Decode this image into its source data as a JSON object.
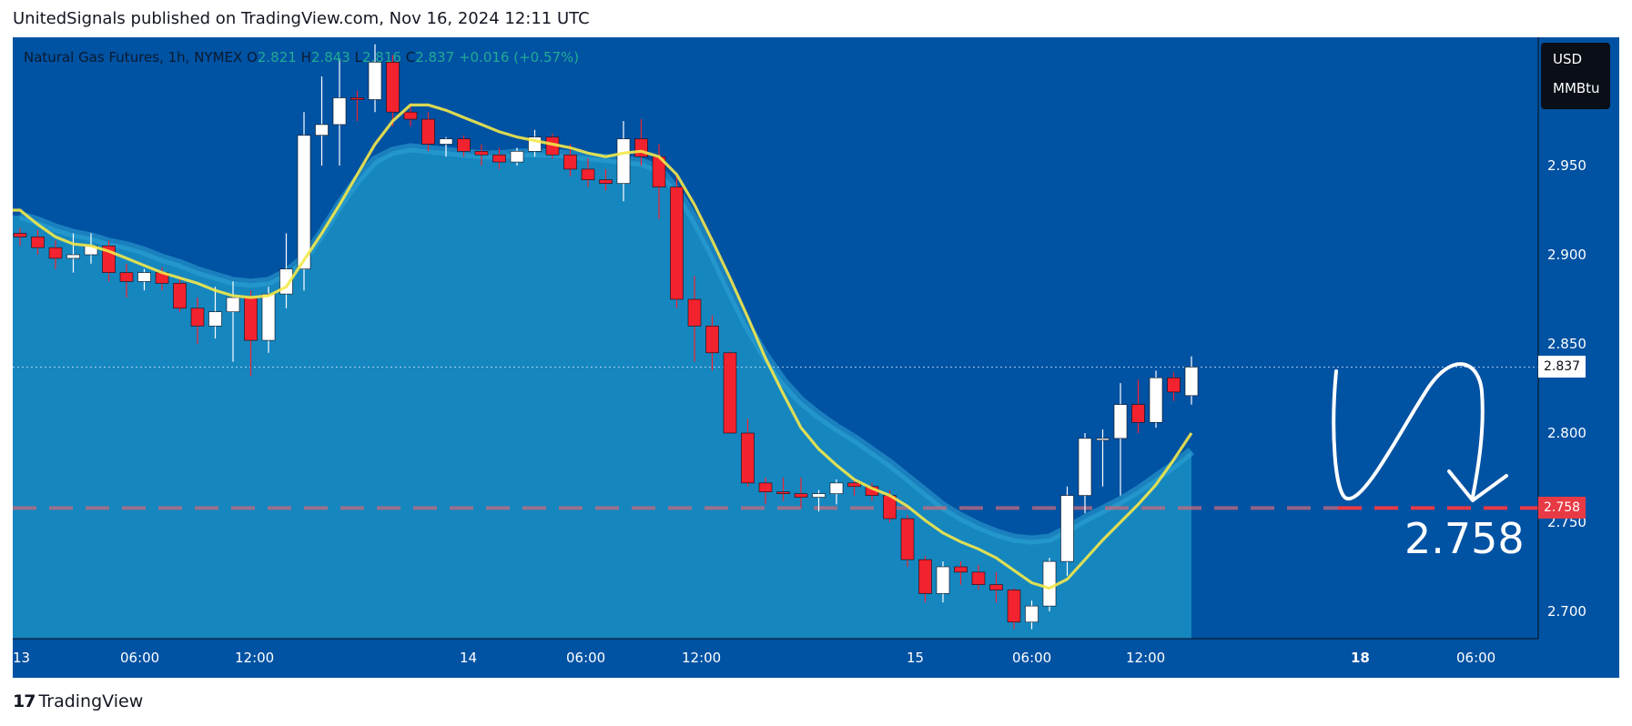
{
  "header": {
    "published": "UnitedSignals published on TradingView.com, Nov 16, 2024 12:11 UTC"
  },
  "symbol": {
    "name": "Natural Gas Futures, 1h, NYMEX",
    "o_label": "O",
    "o": "2.821",
    "h_label": "H",
    "h": "2.843",
    "l_label": "L",
    "l": "2.816",
    "c_label": "C",
    "c": "2.837",
    "change": "+0.016 (+0.57%)"
  },
  "units": {
    "currency": "USD",
    "unit": "MMBtu"
  },
  "price_tags": {
    "last": "2.837",
    "target": "2.758"
  },
  "annotation": {
    "target_text": "2.758"
  },
  "footer": {
    "brand": "TradingView"
  },
  "colors": {
    "up": "#ffffff",
    "down": "#f2222e",
    "ema": "#f3e84a",
    "band": "#1a8fc4",
    "background": "#0052a3",
    "target_line": "#e83a45"
  },
  "chart_data": {
    "type": "candlestick",
    "x_ticks": [
      "13",
      "06:00",
      "12:00",
      "14",
      "06:00",
      "12:00",
      "15",
      "06:00",
      "12:00",
      "18",
      "06:00"
    ],
    "y_ticks": [
      "2.950",
      "2.900",
      "2.850",
      "2.800",
      "2.750",
      "2.700"
    ],
    "ylim": [
      2.688,
      3.02
    ],
    "candles": [
      [
        2.912,
        2.915,
        2.905,
        2.91
      ],
      [
        2.91,
        2.914,
        2.9,
        2.904
      ],
      [
        2.904,
        2.908,
        2.892,
        2.898
      ],
      [
        2.898,
        2.912,
        2.89,
        2.9
      ],
      [
        2.9,
        2.912,
        2.895,
        2.905
      ],
      [
        2.905,
        2.908,
        2.885,
        2.89
      ],
      [
        2.89,
        2.895,
        2.876,
        2.885
      ],
      [
        2.885,
        2.892,
        2.88,
        2.89
      ],
      [
        2.89,
        2.893,
        2.88,
        2.884
      ],
      [
        2.884,
        2.888,
        2.868,
        2.87
      ],
      [
        2.87,
        2.876,
        2.85,
        2.86
      ],
      [
        2.86,
        2.882,
        2.853,
        2.868
      ],
      [
        2.868,
        2.885,
        2.84,
        2.876
      ],
      [
        2.876,
        2.88,
        2.832,
        2.852
      ],
      [
        2.852,
        2.882,
        2.845,
        2.878
      ],
      [
        2.878,
        2.912,
        2.87,
        2.892
      ],
      [
        2.892,
        2.98,
        2.88,
        2.967
      ],
      [
        2.967,
        3.0,
        2.95,
        2.973
      ],
      [
        2.973,
        3.01,
        2.95,
        2.988
      ],
      [
        2.988,
        2.992,
        2.975,
        2.987
      ],
      [
        2.987,
        3.018,
        2.98,
        3.008
      ],
      [
        3.008,
        3.012,
        2.972,
        2.98
      ],
      [
        2.98,
        2.985,
        2.972,
        2.976
      ],
      [
        2.976,
        2.98,
        2.958,
        2.962
      ],
      [
        2.962,
        2.966,
        2.955,
        2.965
      ],
      [
        2.965,
        2.967,
        2.955,
        2.958
      ],
      [
        2.958,
        2.962,
        2.95,
        2.956
      ],
      [
        2.956,
        2.96,
        2.948,
        2.952
      ],
      [
        2.952,
        2.96,
        2.95,
        2.958
      ],
      [
        2.958,
        2.97,
        2.955,
        2.966
      ],
      [
        2.966,
        2.968,
        2.954,
        2.956
      ],
      [
        2.956,
        2.962,
        2.944,
        2.948
      ],
      [
        2.948,
        2.954,
        2.938,
        2.942
      ],
      [
        2.942,
        2.948,
        2.936,
        2.94
      ],
      [
        2.94,
        2.975,
        2.93,
        2.965
      ],
      [
        2.965,
        2.976,
        2.95,
        2.955
      ],
      [
        2.955,
        2.962,
        2.92,
        2.938
      ],
      [
        2.938,
        2.945,
        2.87,
        2.875
      ],
      [
        2.875,
        2.888,
        2.84,
        2.86
      ],
      [
        2.86,
        2.866,
        2.835,
        2.845
      ],
      [
        2.845,
        2.846,
        2.8,
        2.8
      ],
      [
        2.8,
        2.808,
        2.77,
        2.772
      ],
      [
        2.772,
        2.775,
        2.76,
        2.767
      ],
      [
        2.767,
        2.775,
        2.762,
        2.766
      ],
      [
        2.766,
        2.775,
        2.758,
        2.764
      ],
      [
        2.764,
        2.768,
        2.756,
        2.766
      ],
      [
        2.766,
        2.774,
        2.76,
        2.772
      ],
      [
        2.772,
        2.774,
        2.765,
        2.77
      ],
      [
        2.77,
        2.772,
        2.762,
        2.765
      ],
      [
        2.765,
        2.768,
        2.75,
        2.752
      ],
      [
        2.752,
        2.754,
        2.725,
        2.729
      ],
      [
        2.729,
        2.731,
        2.705,
        2.71
      ],
      [
        2.71,
        2.728,
        2.705,
        2.725
      ],
      [
        2.725,
        2.728,
        2.715,
        2.722
      ],
      [
        2.722,
        2.726,
        2.712,
        2.715
      ],
      [
        2.715,
        2.722,
        2.705,
        2.712
      ],
      [
        2.712,
        2.713,
        2.69,
        2.694
      ],
      [
        2.694,
        2.706,
        2.69,
        2.703
      ],
      [
        2.703,
        2.73,
        2.7,
        2.728
      ],
      [
        2.728,
        2.77,
        2.72,
        2.765
      ],
      [
        2.765,
        2.8,
        2.755,
        2.797
      ],
      [
        2.797,
        2.802,
        2.77,
        2.797
      ],
      [
        2.797,
        2.828,
        2.765,
        2.816
      ],
      [
        2.816,
        2.83,
        2.8,
        2.806
      ],
      [
        2.806,
        2.835,
        2.803,
        2.831
      ],
      [
        2.831,
        2.834,
        2.818,
        2.823
      ],
      [
        2.821,
        2.843,
        2.816,
        2.837
      ]
    ],
    "ema": [
      2.925,
      2.917,
      2.91,
      2.906,
      2.905,
      2.902,
      2.898,
      2.894,
      2.89,
      2.887,
      2.884,
      2.88,
      2.877,
      2.876,
      2.877,
      2.882,
      2.897,
      2.912,
      2.928,
      2.945,
      2.962,
      2.975,
      2.984,
      2.984,
      2.981,
      2.977,
      2.973,
      2.969,
      2.966,
      2.964,
      2.962,
      2.96,
      2.957,
      2.955,
      2.957,
      2.958,
      2.955,
      2.945,
      2.928,
      2.908,
      2.887,
      2.865,
      2.842,
      2.822,
      2.803,
      2.791,
      2.782,
      2.774,
      2.769,
      2.765,
      2.759,
      2.751,
      2.744,
      2.739,
      2.735,
      2.73,
      2.723,
      2.716,
      2.713,
      2.718,
      2.729,
      2.74,
      2.75,
      2.76,
      2.771,
      2.785,
      2.8
    ],
    "band": [
      2.922,
      2.919,
      2.915,
      2.912,
      2.91,
      2.907,
      2.905,
      2.902,
      2.898,
      2.895,
      2.891,
      2.888,
      2.885,
      2.884,
      2.885,
      2.89,
      2.898,
      2.912,
      2.928,
      2.942,
      2.953,
      2.958,
      2.96,
      2.959,
      2.958,
      2.957,
      2.956,
      2.956,
      2.957,
      2.957,
      2.957,
      2.956,
      2.955,
      2.954,
      2.953,
      2.952,
      2.948,
      2.936,
      2.92,
      2.901,
      2.88,
      2.86,
      2.843,
      2.829,
      2.818,
      2.81,
      2.803,
      2.797,
      2.79,
      2.783,
      2.775,
      2.767,
      2.759,
      2.753,
      2.748,
      2.744,
      2.741,
      2.74,
      2.741,
      2.746,
      2.752,
      2.757,
      2.762,
      2.768,
      2.775,
      2.782,
      2.79
    ],
    "last_price": 2.837,
    "target_level": 2.758
  }
}
